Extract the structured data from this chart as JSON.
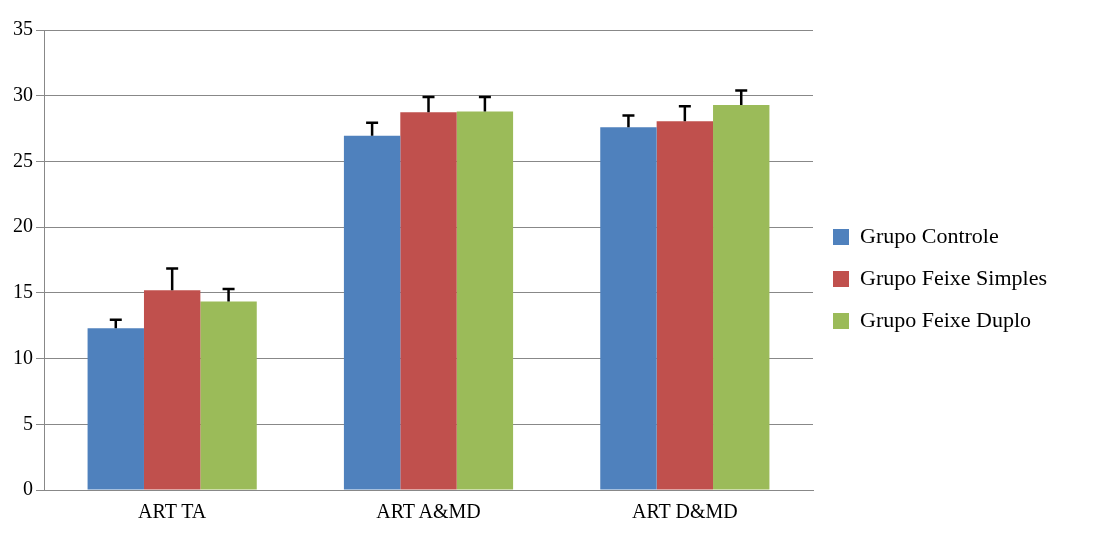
{
  "chart_data": {
    "type": "bar",
    "categories": [
      "ART TA",
      "ART A&MD",
      "ART D&MD"
    ],
    "series": [
      {
        "name": "Grupo Controle",
        "color": "#4f81bd",
        "values": [
          12.3,
          26.95,
          27.6
        ],
        "errors": [
          [
            12.3,
            12.95
          ],
          [
            26.95,
            27.95
          ],
          [
            27.6,
            28.5
          ]
        ]
      },
      {
        "name": "Grupo Feixe Simples",
        "color": "#c0504d",
        "values": [
          15.2,
          28.75,
          28.05
        ],
        "errors": [
          [
            15.2,
            16.85
          ],
          [
            28.75,
            29.9
          ],
          [
            28.05,
            29.2
          ]
        ]
      },
      {
        "name": "Grupo Feixe Duplo",
        "color": "#9bbb59",
        "values": [
          14.35,
          28.8,
          29.3
        ],
        "errors": [
          [
            14.35,
            15.3
          ],
          [
            28.8,
            29.9
          ],
          [
            29.3,
            30.4
          ]
        ]
      }
    ],
    "ylim": [
      0,
      35
    ],
    "yticks": [
      0,
      5,
      10,
      15,
      20,
      25,
      30,
      35
    ],
    "grid": "y",
    "legend": "right"
  }
}
